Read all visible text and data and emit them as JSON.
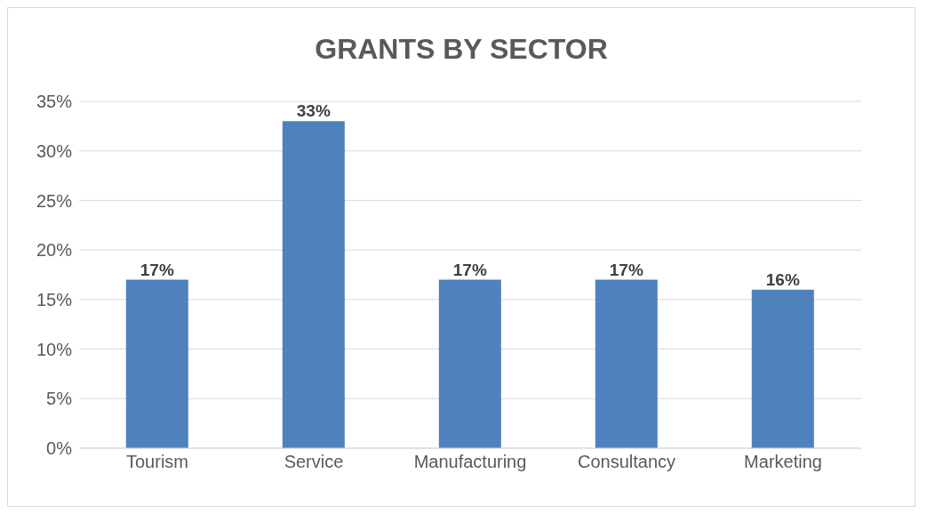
{
  "chart_data": {
    "type": "bar",
    "title": "GRANTS BY SECTOR",
    "categories": [
      "Tourism",
      "Service",
      "Manufacturing",
      "Consultancy",
      "Marketing"
    ],
    "values": [
      17,
      33,
      17,
      17,
      16
    ],
    "value_labels": [
      "17%",
      "33%",
      "17%",
      "17%",
      "16%"
    ],
    "color": "#4f81bd",
    "ylim": [
      0,
      35
    ],
    "yticks": [
      {
        "value": 0,
        "label": "0%"
      },
      {
        "value": 5,
        "label": "5%"
      },
      {
        "value": 10,
        "label": "10%"
      },
      {
        "value": 15,
        "label": "15%"
      },
      {
        "value": 20,
        "label": "20%"
      },
      {
        "value": 25,
        "label": "25%"
      },
      {
        "value": 30,
        "label": "30%"
      },
      {
        "value": 35,
        "label": "35%"
      }
    ],
    "grid": "y"
  }
}
